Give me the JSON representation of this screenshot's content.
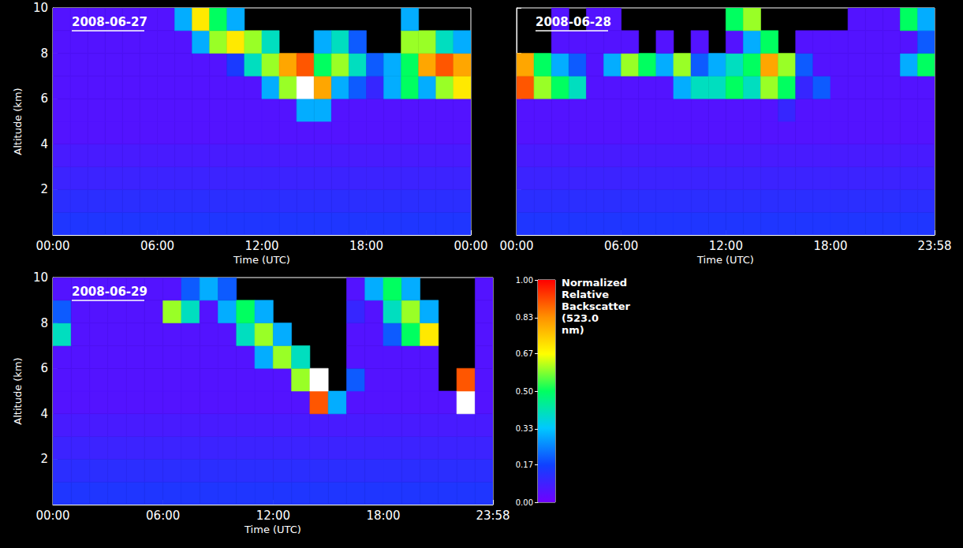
{
  "chart_data": [
    {
      "type": "heatmap",
      "title": "2008-06-27",
      "x_label": "Time (UTC)",
      "y_label": "Altitude (km)",
      "xlim": [
        0,
        24
      ],
      "ylim": [
        0,
        10
      ],
      "xticks": [
        {
          "value": 0,
          "label": "00:00"
        },
        {
          "value": 6,
          "label": "06:00"
        },
        {
          "value": 12,
          "label": "12:00"
        },
        {
          "value": 18,
          "label": "18:00"
        },
        {
          "value": 24,
          "label": "00:00"
        }
      ],
      "yticks": [
        2,
        4,
        6,
        8,
        10
      ],
      "x_bins": [
        0,
        1,
        2,
        3,
        4,
        5,
        6,
        7,
        8,
        9,
        10,
        11,
        12,
        13,
        14,
        15,
        16,
        17,
        18,
        19,
        20,
        21,
        22,
        23,
        24
      ],
      "y_bins": [
        0,
        1,
        2,
        3,
        4,
        5,
        6,
        7,
        8,
        9,
        10
      ],
      "values": [
        [
          0.14,
          0.14,
          0.14,
          0.14,
          0.14,
          0.14,
          0.14,
          0.14,
          0.14,
          0.14,
          0.14,
          0.14,
          0.14,
          0.14,
          0.14,
          0.14,
          0.14,
          0.14,
          0.14,
          0.14,
          0.14,
          0.14,
          0.14,
          0.14
        ],
        [
          0.12,
          0.12,
          0.12,
          0.12,
          0.12,
          0.12,
          0.12,
          0.12,
          0.12,
          0.12,
          0.12,
          0.12,
          0.12,
          0.12,
          0.12,
          0.12,
          0.12,
          0.12,
          0.12,
          0.12,
          0.12,
          0.12,
          0.12,
          0.12
        ],
        [
          0.09,
          0.09,
          0.09,
          0.09,
          0.09,
          0.09,
          0.09,
          0.09,
          0.09,
          0.09,
          0.09,
          0.09,
          0.09,
          0.09,
          0.09,
          0.09,
          0.09,
          0.09,
          0.09,
          0.09,
          0.09,
          0.09,
          0.09,
          0.09
        ],
        [
          0.07,
          0.07,
          0.07,
          0.07,
          0.07,
          0.07,
          0.07,
          0.07,
          0.07,
          0.07,
          0.07,
          0.07,
          0.07,
          0.07,
          0.07,
          0.07,
          0.07,
          0.07,
          0.07,
          0.07,
          0.07,
          0.07,
          0.07,
          0.07
        ],
        [
          0.05,
          0.05,
          0.05,
          0.05,
          0.05,
          0.05,
          0.05,
          0.05,
          0.05,
          0.05,
          0.05,
          0.05,
          0.05,
          0.05,
          0.05,
          0.05,
          0.05,
          0.05,
          0.05,
          0.05,
          0.05,
          0.05,
          0.05,
          0.05
        ],
        [
          0.05,
          0.05,
          0.05,
          0.05,
          0.05,
          0.05,
          0.05,
          0.05,
          0.05,
          0.05,
          0.05,
          0.05,
          0.05,
          0.05,
          0.3,
          0.3,
          0.05,
          0.05,
          0.05,
          0.05,
          0.05,
          0.05,
          0.05,
          0.05
        ],
        [
          0.05,
          0.05,
          0.05,
          0.05,
          0.05,
          0.05,
          0.05,
          0.05,
          0.05,
          0.05,
          0.05,
          0.05,
          0.3,
          0.6,
          1.2,
          0.8,
          0.3,
          0.2,
          0.1,
          0.3,
          0.5,
          0.3,
          0.6,
          0.7
        ],
        [
          0.05,
          0.05,
          0.05,
          0.05,
          0.05,
          0.05,
          0.05,
          0.05,
          0.05,
          0.05,
          0.15,
          0.4,
          0.6,
          0.8,
          0.9,
          0.5,
          0.6,
          0.4,
          0.2,
          0.3,
          0.5,
          0.8,
          0.9,
          0.8
        ],
        [
          0.05,
          0.05,
          0.05,
          0.05,
          0.05,
          0.05,
          0.05,
          0.05,
          0.3,
          0.6,
          0.7,
          0.6,
          0.4,
          null,
          null,
          0.3,
          0.4,
          0.2,
          null,
          null,
          0.6,
          0.6,
          0.4,
          0.3
        ],
        [
          0.05,
          0.05,
          0.05,
          0.05,
          0.05,
          0.05,
          0.05,
          0.3,
          0.7,
          0.5,
          0.3,
          null,
          null,
          null,
          null,
          null,
          null,
          null,
          null,
          null,
          0.3,
          null,
          null,
          null
        ]
      ]
    },
    {
      "type": "heatmap",
      "title": "2008-06-28",
      "x_label": "Time (UTC)",
      "tick_labels": "x",
      "xlim": [
        0,
        23.97
      ],
      "ylim": [
        0,
        10
      ],
      "xticks": [
        {
          "value": 0,
          "label": "00:00"
        },
        {
          "value": 6,
          "label": "06:00"
        },
        {
          "value": 12,
          "label": "12:00"
        },
        {
          "value": 18,
          "label": "18:00"
        },
        {
          "value": 23.97,
          "label": "23:58"
        }
      ],
      "yticks": [
        2,
        4,
        6,
        8,
        10
      ],
      "x_bins": [
        0,
        1,
        2,
        3,
        4,
        5,
        6,
        7,
        8,
        9,
        10,
        11,
        12,
        13,
        14,
        15,
        16,
        17,
        18,
        19,
        20,
        21,
        22,
        23,
        24
      ],
      "y_bins": [
        0,
        1,
        2,
        3,
        4,
        5,
        6,
        7,
        8,
        9,
        10
      ],
      "values": [
        [
          0.14,
          0.14,
          0.14,
          0.14,
          0.14,
          0.14,
          0.14,
          0.14,
          0.14,
          0.14,
          0.14,
          0.14,
          0.14,
          0.14,
          0.14,
          0.14,
          0.14,
          0.14,
          0.14,
          0.14,
          0.14,
          0.14,
          0.14,
          0.14
        ],
        [
          0.12,
          0.12,
          0.12,
          0.12,
          0.12,
          0.12,
          0.12,
          0.12,
          0.12,
          0.12,
          0.12,
          0.12,
          0.12,
          0.12,
          0.12,
          0.12,
          0.12,
          0.12,
          0.12,
          0.12,
          0.12,
          0.12,
          0.12,
          0.12
        ],
        [
          0.09,
          0.09,
          0.09,
          0.09,
          0.09,
          0.09,
          0.09,
          0.09,
          0.09,
          0.09,
          0.09,
          0.09,
          0.09,
          0.09,
          0.09,
          0.09,
          0.09,
          0.09,
          0.09,
          0.09,
          0.09,
          0.09,
          0.09,
          0.09
        ],
        [
          0.07,
          0.07,
          0.07,
          0.07,
          0.07,
          0.07,
          0.07,
          0.07,
          0.07,
          0.07,
          0.07,
          0.07,
          0.07,
          0.07,
          0.07,
          0.07,
          0.07,
          0.07,
          0.07,
          0.07,
          0.07,
          0.07,
          0.07,
          0.07
        ],
        [
          0.05,
          0.05,
          0.05,
          0.05,
          0.05,
          0.05,
          0.05,
          0.05,
          0.05,
          0.05,
          0.05,
          0.05,
          0.05,
          0.05,
          0.05,
          0.05,
          0.05,
          0.05,
          0.05,
          0.05,
          0.05,
          0.05,
          0.05,
          0.05
        ],
        [
          0.05,
          0.05,
          0.05,
          0.05,
          0.05,
          0.05,
          0.05,
          0.05,
          0.05,
          0.05,
          0.05,
          0.05,
          0.05,
          0.05,
          0.05,
          0.1,
          0.05,
          0.05,
          0.05,
          0.05,
          0.05,
          0.05,
          0.05,
          0.05
        ],
        [
          0.9,
          0.6,
          0.5,
          0.4,
          0.05,
          0.05,
          0.05,
          0.05,
          0.05,
          0.3,
          0.4,
          0.4,
          0.5,
          0.4,
          0.6,
          0.5,
          0.1,
          0.2,
          0.05,
          0.05,
          0.05,
          0.05,
          0.05,
          0.05
        ],
        [
          0.8,
          0.5,
          0.3,
          0.2,
          0.05,
          0.3,
          0.6,
          0.5,
          0.3,
          0.6,
          0.2,
          0.3,
          0.4,
          0.5,
          0.8,
          0.6,
          0.2,
          0.05,
          0.05,
          0.05,
          0.05,
          0.05,
          0.3,
          0.5
        ],
        [
          null,
          null,
          0.05,
          0.05,
          0.05,
          0.05,
          0.05,
          null,
          0.05,
          null,
          0.05,
          null,
          0.05,
          0.3,
          0.5,
          null,
          0.05,
          0.05,
          0.05,
          0.05,
          0.05,
          0.05,
          0.05,
          0.2
        ],
        [
          null,
          null,
          0.05,
          null,
          0.05,
          0.05,
          null,
          null,
          null,
          null,
          null,
          null,
          0.5,
          0.6,
          null,
          null,
          null,
          null,
          null,
          0.05,
          0.05,
          0.05,
          0.5,
          0.3
        ]
      ]
    },
    {
      "type": "heatmap",
      "title": "2008-06-29",
      "x_label": "Time (UTC)",
      "y_label": "Altitude (km)",
      "xlim": [
        0,
        23.97
      ],
      "ylim": [
        0,
        10
      ],
      "xticks": [
        {
          "value": 0,
          "label": "00:00"
        },
        {
          "value": 6,
          "label": "06:00"
        },
        {
          "value": 12,
          "label": "12:00"
        },
        {
          "value": 18,
          "label": "18:00"
        },
        {
          "value": 23.97,
          "label": "23:58"
        }
      ],
      "yticks": [
        2,
        4,
        6,
        8,
        10
      ],
      "x_bins": [
        0,
        1,
        2,
        3,
        4,
        5,
        6,
        7,
        8,
        9,
        10,
        11,
        12,
        13,
        14,
        15,
        16,
        17,
        18,
        19,
        20,
        21,
        22,
        23,
        24
      ],
      "y_bins": [
        0,
        1,
        2,
        3,
        4,
        5,
        6,
        7,
        8,
        9,
        10
      ],
      "values": [
        [
          0.14,
          0.14,
          0.14,
          0.14,
          0.14,
          0.14,
          0.14,
          0.14,
          0.14,
          0.14,
          0.14,
          0.14,
          0.14,
          0.14,
          0.14,
          0.14,
          0.14,
          0.14,
          0.14,
          0.14,
          0.14,
          0.14,
          0.14,
          0.14
        ],
        [
          0.12,
          0.12,
          0.12,
          0.12,
          0.12,
          0.12,
          0.12,
          0.12,
          0.12,
          0.12,
          0.12,
          0.12,
          0.12,
          0.12,
          0.12,
          0.12,
          0.12,
          0.12,
          0.12,
          0.12,
          0.12,
          0.12,
          0.12,
          0.12
        ],
        [
          0.09,
          0.09,
          0.09,
          0.09,
          0.09,
          0.09,
          0.09,
          0.09,
          0.09,
          0.09,
          0.09,
          0.09,
          0.09,
          0.09,
          0.09,
          0.09,
          0.09,
          0.09,
          0.09,
          0.09,
          0.09,
          0.09,
          0.09,
          0.09
        ],
        [
          0.07,
          0.07,
          0.07,
          0.07,
          0.07,
          0.07,
          0.07,
          0.07,
          0.07,
          0.07,
          0.07,
          0.07,
          0.07,
          0.07,
          0.07,
          0.07,
          0.07,
          0.07,
          0.07,
          0.07,
          0.07,
          0.07,
          0.07,
          0.07
        ],
        [
          0.05,
          0.05,
          0.05,
          0.05,
          0.05,
          0.05,
          0.05,
          0.05,
          0.05,
          0.05,
          0.05,
          0.05,
          0.05,
          0.05,
          0.9,
          0.3,
          0.05,
          0.05,
          0.05,
          0.05,
          0.05,
          0.05,
          1.2,
          0.05
        ],
        [
          0.05,
          0.05,
          0.05,
          0.05,
          0.05,
          0.05,
          0.05,
          0.05,
          0.05,
          0.05,
          0.05,
          0.05,
          0.05,
          0.6,
          1.2,
          null,
          0.2,
          0.05,
          0.05,
          0.05,
          0.05,
          null,
          0.9,
          0.05
        ],
        [
          0.05,
          0.05,
          0.05,
          0.05,
          0.05,
          0.05,
          0.05,
          0.05,
          0.05,
          0.05,
          0.05,
          0.3,
          0.6,
          0.4,
          null,
          null,
          0.05,
          0.05,
          0.05,
          0.05,
          0.05,
          null,
          null,
          0.05
        ],
        [
          0.4,
          0.05,
          0.05,
          0.05,
          0.05,
          0.05,
          0.05,
          0.05,
          0.05,
          0.05,
          0.4,
          0.6,
          0.3,
          null,
          null,
          null,
          0.05,
          0.05,
          0.2,
          0.5,
          0.7,
          null,
          null,
          0.05
        ],
        [
          0.2,
          0.05,
          0.05,
          0.05,
          0.05,
          0.05,
          0.6,
          0.4,
          0.05,
          0.3,
          0.5,
          0.3,
          null,
          null,
          null,
          null,
          0.1,
          0.05,
          0.4,
          0.6,
          0.3,
          null,
          null,
          0.05
        ],
        [
          0.05,
          0.05,
          0.05,
          0.05,
          0.05,
          0.05,
          0.05,
          0.2,
          0.3,
          0.2,
          null,
          null,
          null,
          null,
          null,
          null,
          0.05,
          0.3,
          0.5,
          0.3,
          null,
          null,
          null,
          0.05
        ]
      ]
    }
  ],
  "colorbar": {
    "title": "Normalized Relative Backscatter (523.0 nm)",
    "range": [
      0,
      1
    ],
    "ticks": [
      {
        "value": 0,
        "label": "0.00"
      },
      {
        "value": 0.17,
        "label": "0.17"
      },
      {
        "value": 0.33,
        "label": "0.33"
      },
      {
        "value": 0.5,
        "label": "0.50"
      },
      {
        "value": 0.67,
        "label": "0.67"
      },
      {
        "value": 0.83,
        "label": "0.83"
      },
      {
        "value": 1,
        "label": "1.00"
      }
    ]
  }
}
